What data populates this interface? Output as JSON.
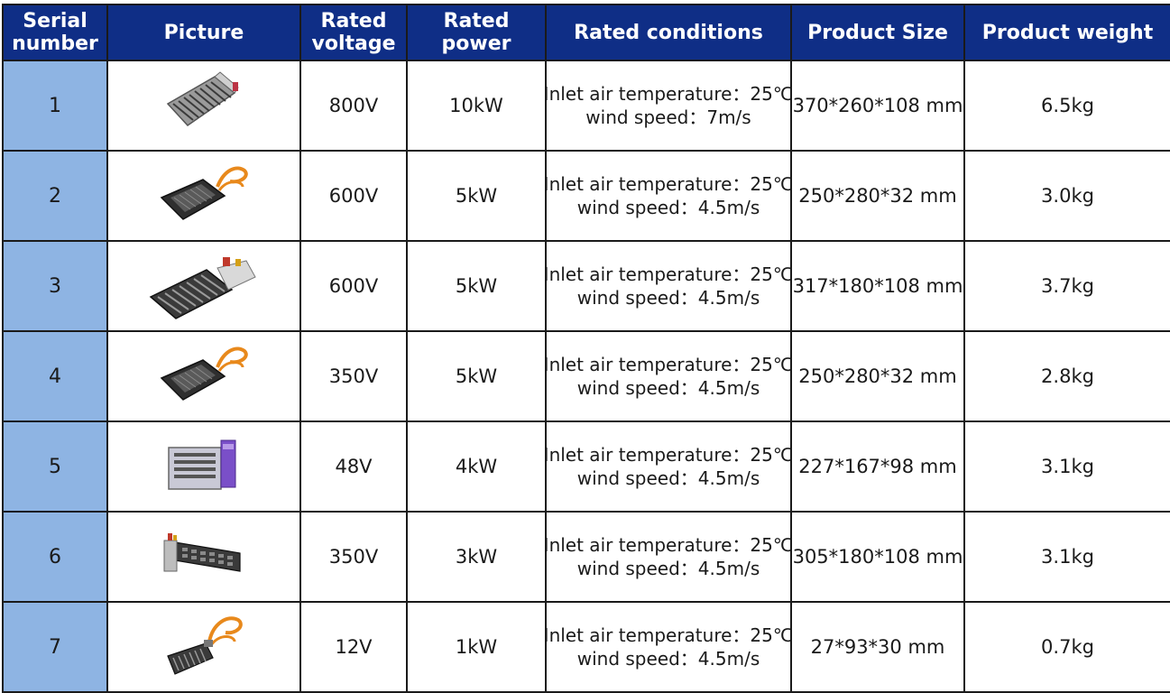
{
  "headers": {
    "serial_line1": "Serial",
    "serial_line2": "number",
    "picture": "Picture",
    "voltage_line1": "Rated",
    "voltage_line2": "voltage",
    "power_line1": "Rated",
    "power_line2": "power",
    "conditions": "Rated conditions",
    "size": "Product Size",
    "weight": "Product weight"
  },
  "rows": [
    {
      "serial": "1",
      "image": "heater-grille-icon",
      "voltage": "800V",
      "power": "10kW",
      "cond1": "Inlet air temperature：25℃",
      "cond2": "wind speed：7m/s",
      "size": "370*260*108 mm",
      "weight": "6.5kg"
    },
    {
      "serial": "2",
      "image": "heater-plate-with-cable-icon",
      "voltage": "600V",
      "power": "5kW",
      "cond1": "Inlet air temperature：25℃",
      "cond2": "wind speed：4.5m/s",
      "size": "250*280*32 mm",
      "weight": "3.0kg"
    },
    {
      "serial": "3",
      "image": "heater-fin-block-icon",
      "voltage": "600V",
      "power": "5kW",
      "cond1": "Inlet air temperature：25℃",
      "cond2": "wind speed：4.5m/s",
      "size": "317*180*108 mm",
      "weight": "3.7kg"
    },
    {
      "serial": "4",
      "image": "heater-plate-with-cable-icon",
      "voltage": "350V",
      "power": "5kW",
      "cond1": "Inlet air temperature：25℃",
      "cond2": "wind speed：4.5m/s",
      "size": "250*280*32 mm",
      "weight": "2.8kg"
    },
    {
      "serial": "5",
      "image": "heater-box-purple-icon",
      "voltage": "48V",
      "power": "4kW",
      "cond1": "Inlet air temperature：25℃",
      "cond2": "wind speed：4.5m/s",
      "size": "227*167*98 mm",
      "weight": "3.1kg"
    },
    {
      "serial": "6",
      "image": "heater-long-block-icon",
      "voltage": "350V",
      "power": "3kW",
      "cond1": "Inlet air temperature：25℃",
      "cond2": "wind speed：4.5m/s",
      "size": "305*180*108 mm",
      "weight": "3.1kg"
    },
    {
      "serial": "7",
      "image": "heater-small-with-cable-icon",
      "voltage": "12V",
      "power": "1kW",
      "cond1": "Inlet air temperature：25℃",
      "cond2": "wind speed：4.5m/s",
      "size": "27*93*30 mm",
      "weight": "0.7kg"
    }
  ],
  "colors": {
    "header_bg": "#0f2e86",
    "serial_bg": "#8eb4e3",
    "cable_orange": "#e8891c"
  }
}
